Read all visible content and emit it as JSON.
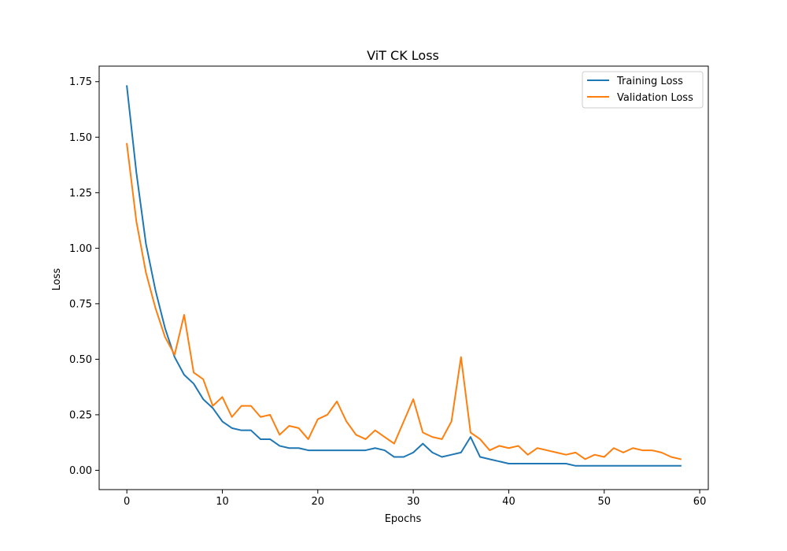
{
  "chart_data": {
    "type": "line",
    "title": "ViT CK Loss",
    "xlabel": "Epochs",
    "ylabel": "Loss",
    "xlim": [
      -2.9,
      60.9
    ],
    "ylim": [
      -0.087,
      1.82
    ],
    "x_ticks": [
      0,
      10,
      20,
      30,
      40,
      50,
      60
    ],
    "y_ticks": [
      0.0,
      0.25,
      0.5,
      0.75,
      1.0,
      1.25,
      1.5,
      1.75
    ],
    "y_tick_labels": [
      "0.00",
      "0.25",
      "0.50",
      "0.75",
      "1.00",
      "1.25",
      "1.50",
      "1.75"
    ],
    "grid": false,
    "legend": "top-right",
    "x": [
      0,
      1,
      2,
      3,
      4,
      5,
      6,
      7,
      8,
      9,
      10,
      11,
      12,
      13,
      14,
      15,
      16,
      17,
      18,
      19,
      20,
      21,
      22,
      23,
      24,
      25,
      26,
      27,
      28,
      29,
      30,
      31,
      32,
      33,
      34,
      35,
      36,
      37,
      38,
      39,
      40,
      41,
      42,
      43,
      44,
      45,
      46,
      47,
      48,
      49,
      50,
      51,
      52,
      53,
      54,
      55,
      56,
      57,
      58
    ],
    "series": [
      {
        "name": "Training Loss",
        "color": "#1f77b4",
        "values": [
          1.73,
          1.34,
          1.02,
          0.81,
          0.64,
          0.51,
          0.43,
          0.39,
          0.32,
          0.28,
          0.22,
          0.19,
          0.18,
          0.18,
          0.14,
          0.14,
          0.11,
          0.1,
          0.1,
          0.09,
          0.09,
          0.09,
          0.09,
          0.09,
          0.09,
          0.09,
          0.1,
          0.09,
          0.06,
          0.06,
          0.08,
          0.12,
          0.08,
          0.06,
          0.07,
          0.08,
          0.15,
          0.06,
          0.05,
          0.04,
          0.03,
          0.03,
          0.03,
          0.03,
          0.03,
          0.03,
          0.03,
          0.02,
          0.02,
          0.02,
          0.02,
          0.02,
          0.02,
          0.02,
          0.02,
          0.02,
          0.02,
          0.02,
          0.02
        ]
      },
      {
        "name": "Validation Loss",
        "color": "#ff7f0e",
        "values": [
          1.47,
          1.12,
          0.89,
          0.73,
          0.6,
          0.52,
          0.7,
          0.44,
          0.41,
          0.29,
          0.33,
          0.24,
          0.29,
          0.29,
          0.24,
          0.25,
          0.16,
          0.2,
          0.19,
          0.14,
          0.23,
          0.25,
          0.31,
          0.22,
          0.16,
          0.14,
          0.18,
          0.15,
          0.12,
          0.22,
          0.32,
          0.17,
          0.15,
          0.14,
          0.22,
          0.51,
          0.17,
          0.14,
          0.09,
          0.11,
          0.1,
          0.11,
          0.07,
          0.1,
          0.09,
          0.08,
          0.07,
          0.08,
          0.05,
          0.07,
          0.06,
          0.1,
          0.08,
          0.1,
          0.09,
          0.09,
          0.08,
          0.06,
          0.05
        ]
      }
    ]
  }
}
